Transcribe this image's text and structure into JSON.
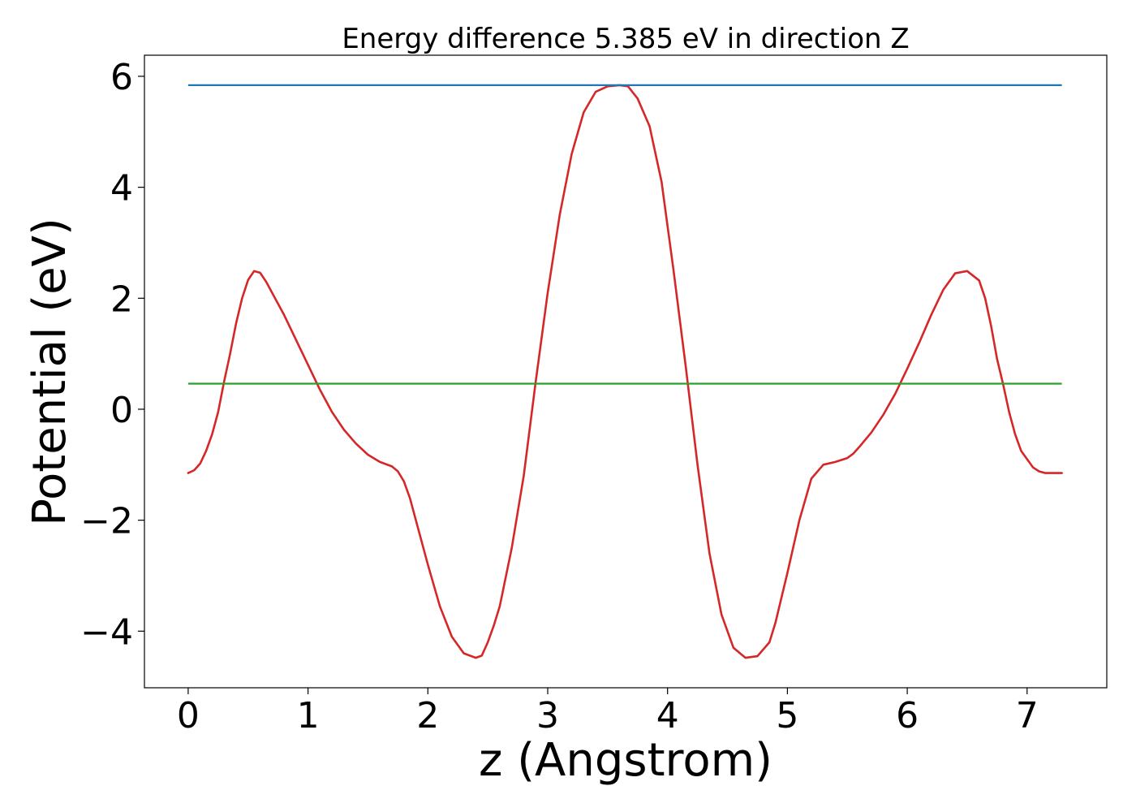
{
  "chart_data": {
    "type": "line",
    "title": "Energy difference 5.385 eV in direction Z",
    "xlabel": "z (Angstrom)",
    "ylabel": "Potential (eV)",
    "xlim": [
      -0.365,
      7.665
    ],
    "ylim": [
      -5.02,
      6.38
    ],
    "xticks": [
      0,
      1,
      2,
      3,
      4,
      5,
      6,
      7
    ],
    "xtick_labels": [
      "0",
      "1",
      "2",
      "3",
      "4",
      "5",
      "6",
      "7"
    ],
    "yticks": [
      -4,
      -2,
      0,
      2,
      4,
      6
    ],
    "ytick_labels": [
      "−4",
      "−2",
      "0",
      "2",
      "4",
      "6"
    ],
    "grid": false,
    "series": [
      {
        "color": "#d62728",
        "x": [
          0.0,
          0.05,
          0.1,
          0.15,
          0.2,
          0.25,
          0.3,
          0.35,
          0.4,
          0.45,
          0.5,
          0.55,
          0.6,
          0.65,
          0.7,
          0.8,
          0.9,
          1.0,
          1.1,
          1.2,
          1.3,
          1.4,
          1.5,
          1.6,
          1.7,
          1.75,
          1.8,
          1.85,
          1.9,
          2.0,
          2.1,
          2.2,
          2.3,
          2.4,
          2.45,
          2.5,
          2.55,
          2.6,
          2.7,
          2.8,
          2.9,
          3.0,
          3.1,
          3.2,
          3.3,
          3.4,
          3.5,
          3.6,
          3.67,
          3.75,
          3.85,
          3.95,
          4.05,
          4.15,
          4.25,
          4.35,
          4.45,
          4.55,
          4.65,
          4.75,
          4.85,
          4.9,
          4.95,
          5.0,
          5.1,
          5.2,
          5.3,
          5.4,
          5.5,
          5.55,
          5.6,
          5.7,
          5.8,
          5.9,
          6.0,
          6.1,
          6.2,
          6.3,
          6.4,
          6.5,
          6.6,
          6.65,
          6.7,
          6.75,
          6.8,
          6.85,
          6.9,
          6.95,
          7.0,
          7.05,
          7.1,
          7.15,
          7.2,
          7.25,
          7.29
        ],
        "y": [
          -1.15,
          -1.1,
          -0.98,
          -0.75,
          -0.45,
          -0.05,
          0.5,
          1.0,
          1.55,
          2.0,
          2.33,
          2.49,
          2.46,
          2.3,
          2.1,
          1.7,
          1.25,
          0.8,
          0.35,
          -0.05,
          -0.37,
          -0.62,
          -0.82,
          -0.95,
          -1.03,
          -1.12,
          -1.3,
          -1.6,
          -2.0,
          -2.8,
          -3.55,
          -4.1,
          -4.4,
          -4.48,
          -4.44,
          -4.2,
          -3.9,
          -3.55,
          -2.5,
          -1.2,
          0.5,
          2.1,
          3.5,
          4.6,
          5.35,
          5.72,
          5.82,
          5.84,
          5.82,
          5.6,
          5.1,
          4.1,
          2.5,
          0.8,
          -1.0,
          -2.6,
          -3.7,
          -4.3,
          -4.48,
          -4.45,
          -4.2,
          -3.85,
          -3.4,
          -2.95,
          -2.0,
          -1.25,
          -1.0,
          -0.95,
          -0.88,
          -0.8,
          -0.68,
          -0.42,
          -0.1,
          0.28,
          0.73,
          1.2,
          1.7,
          2.15,
          2.45,
          2.49,
          2.32,
          2.0,
          1.5,
          0.9,
          0.45,
          -0.05,
          -0.45,
          -0.75,
          -0.9,
          -1.05,
          -1.12,
          -1.15,
          -1.15,
          -1.15,
          -1.15
        ]
      },
      {
        "color": "#1f77b4",
        "x": [
          0.0,
          7.29
        ],
        "y": [
          5.84,
          5.84
        ]
      },
      {
        "color": "#2ca02c",
        "x": [
          0.0,
          7.29
        ],
        "y": [
          0.46,
          0.46
        ]
      }
    ]
  }
}
